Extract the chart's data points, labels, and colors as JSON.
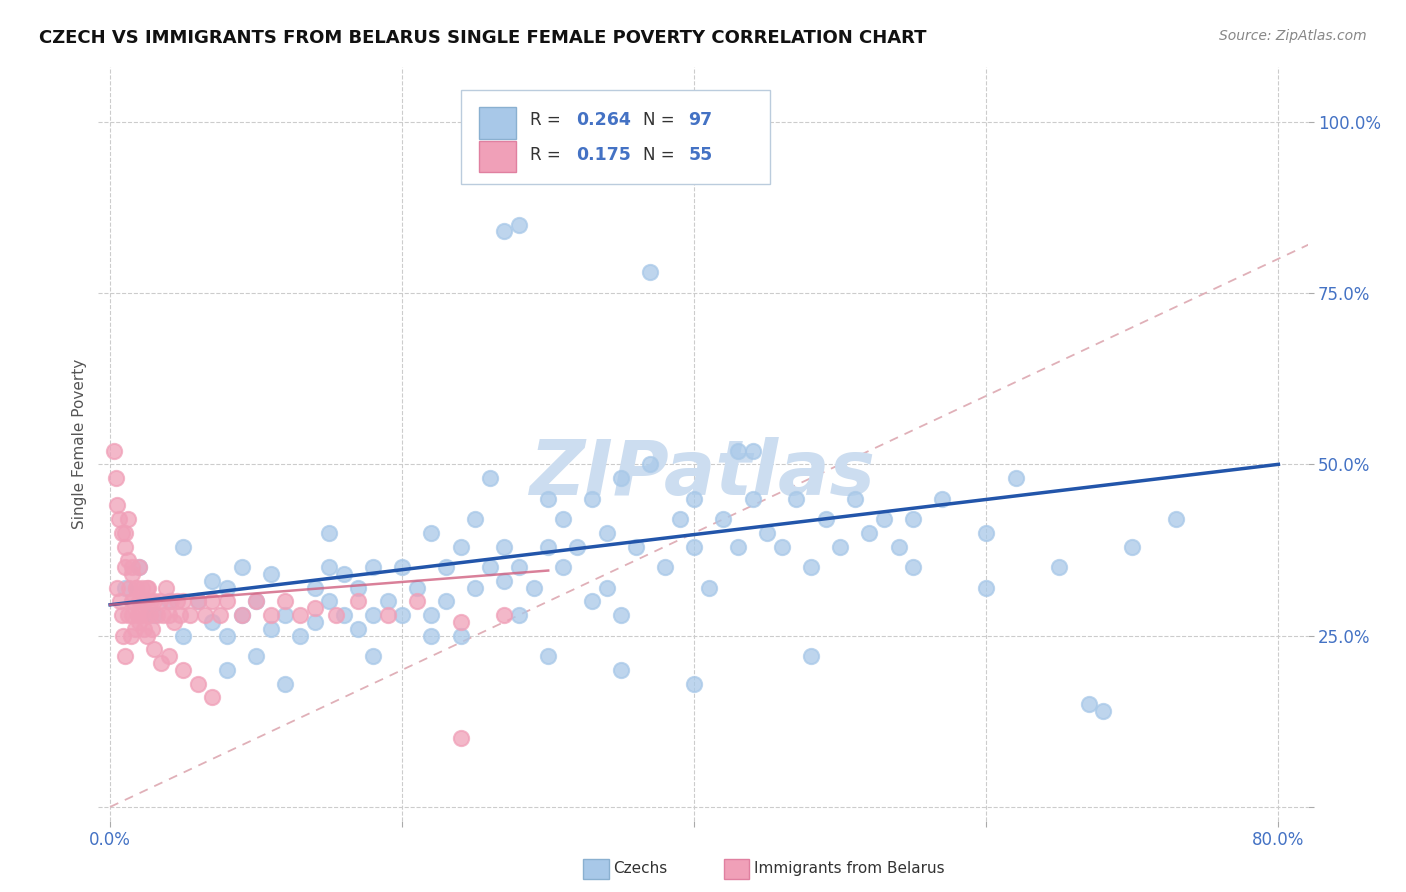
{
  "title": "CZECH VS IMMIGRANTS FROM BELARUS SINGLE FEMALE POVERTY CORRELATION CHART",
  "source": "Source: ZipAtlas.com",
  "ylabel": "Single Female Poverty",
  "xlim": [
    -0.008,
    0.82
  ],
  "ylim": [
    -0.02,
    1.08
  ],
  "yticks": [
    0.0,
    0.25,
    0.5,
    0.75,
    1.0
  ],
  "ytick_labels": [
    "",
    "25.0%",
    "50.0%",
    "75.0%",
    "100.0%"
  ],
  "xticks": [
    0.0,
    0.2,
    0.4,
    0.6,
    0.8
  ],
  "xtick_labels": [
    "0.0%",
    "",
    "",
    "",
    "80.0%"
  ],
  "legend_r1": "0.264",
  "legend_n1": "97",
  "legend_r2": "0.175",
  "legend_n2": "55",
  "czech_color": "#a8c8e8",
  "belarus_color": "#f0a0b8",
  "line_color_czech": "#2255aa",
  "line_color_belarus": "#d06080",
  "diagonal_color": "#e0b0b8",
  "watermark_color": "#ccddf0",
  "czech_trend_x0": 0.0,
  "czech_trend_y0": 0.295,
  "czech_trend_x1": 0.8,
  "czech_trend_y1": 0.5,
  "belarus_trend_x0": 0.0,
  "belarus_trend_y0": 0.295,
  "belarus_trend_x1": 0.3,
  "belarus_trend_y1": 0.345
}
